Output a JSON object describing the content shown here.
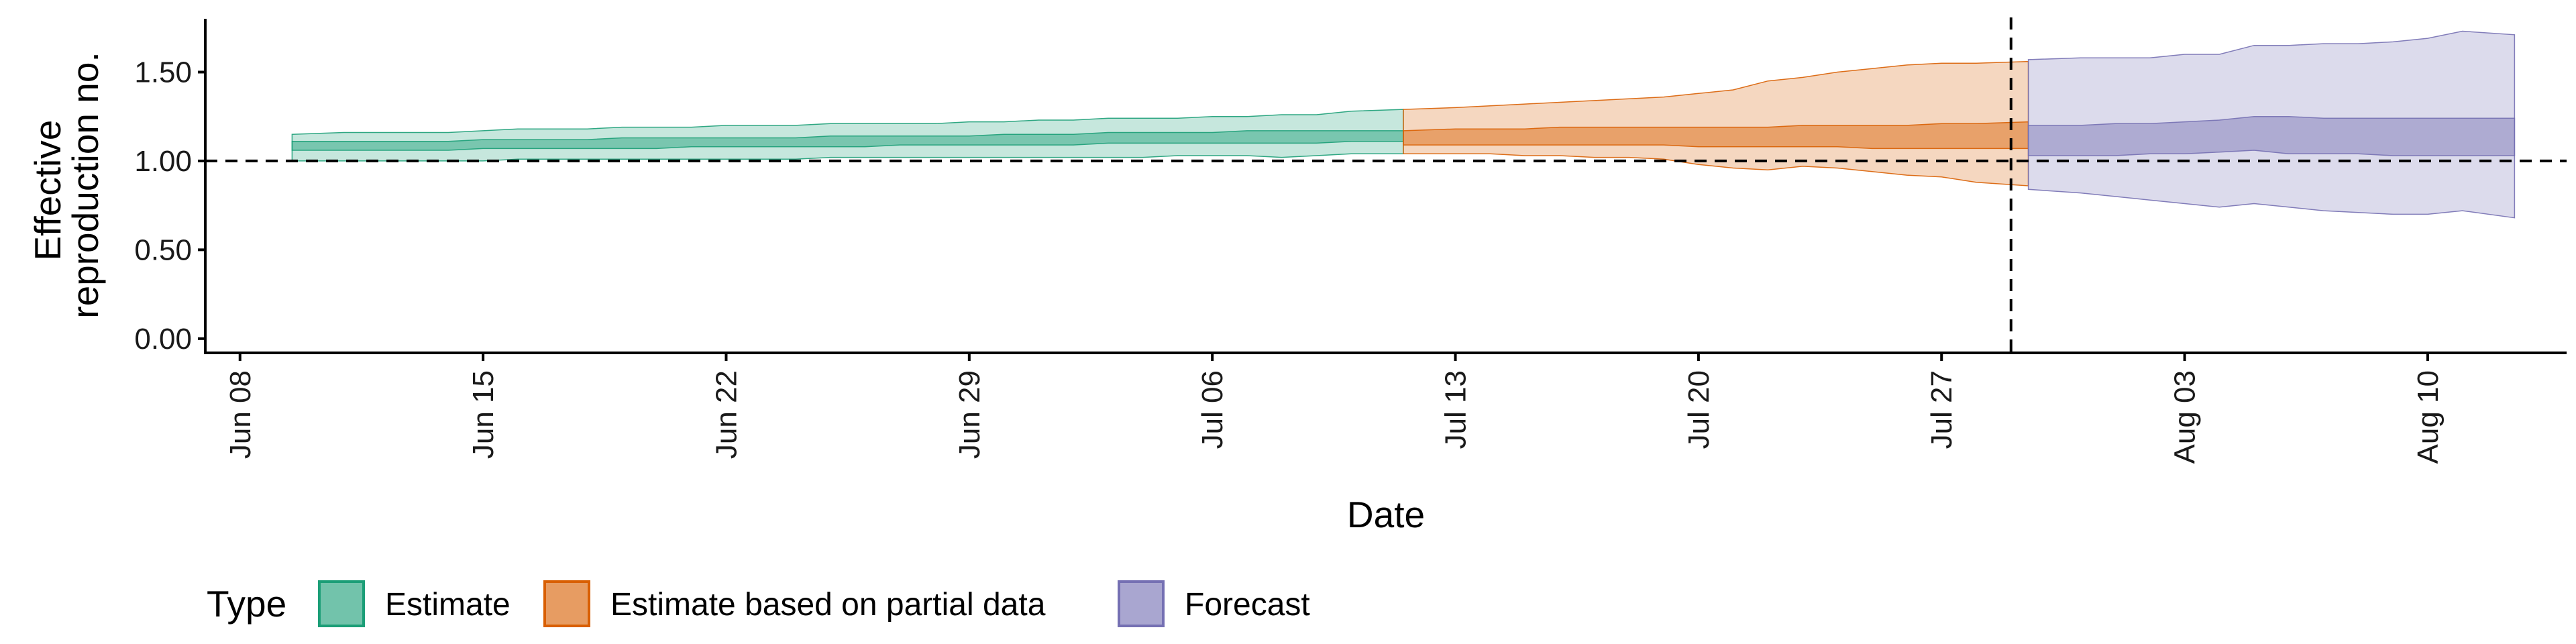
{
  "chart_data": {
    "type": "area",
    "xlabel": "Date",
    "ylabel_lines": [
      "Effective",
      "reproduction no."
    ],
    "x_ticks": [
      "Jun 08",
      "Jun 15",
      "Jun 22",
      "Jun 29",
      "Jul 06",
      "Jul 13",
      "Jul 20",
      "Jul 27",
      "Aug 03",
      "Aug 10"
    ],
    "x_tick_dates": [
      "2020-06-08",
      "2020-06-15",
      "2020-06-22",
      "2020-06-29",
      "2020-07-06",
      "2020-07-13",
      "2020-07-20",
      "2020-07-27",
      "2020-08-03",
      "2020-08-10"
    ],
    "x_range": [
      "2020-06-07",
      "2020-08-14"
    ],
    "y_ticks": [
      "0.00",
      "0.50",
      "1.00",
      "1.50"
    ],
    "ylim": [
      -0.08,
      1.8
    ],
    "hline": 1.0,
    "vline": "2020-07-29",
    "legend": {
      "title": "Type",
      "position": "bottom"
    },
    "series": [
      {
        "name": "Estimate",
        "color": "#1B9E77",
        "x": [
          "2020-06-10",
          "2020-06-11",
          "2020-06-12",
          "2020-06-13",
          "2020-06-14",
          "2020-06-15",
          "2020-06-16",
          "2020-06-17",
          "2020-06-18",
          "2020-06-19",
          "2020-06-20",
          "2020-06-21",
          "2020-06-22",
          "2020-06-23",
          "2020-06-24",
          "2020-06-25",
          "2020-06-26",
          "2020-06-27",
          "2020-06-28",
          "2020-06-29",
          "2020-06-30",
          "2020-07-01",
          "2020-07-02",
          "2020-07-03",
          "2020-07-04",
          "2020-07-05",
          "2020-07-06",
          "2020-07-07",
          "2020-07-08",
          "2020-07-09",
          "2020-07-10",
          "2020-07-11"
        ],
        "lower_90": [
          1.0,
          1.0,
          1.0,
          1.0,
          1.0,
          1.0,
          1.01,
          1.01,
          1.01,
          1.01,
          1.01,
          1.01,
          1.01,
          1.01,
          1.01,
          1.02,
          1.02,
          1.02,
          1.02,
          1.02,
          1.02,
          1.02,
          1.02,
          1.02,
          1.02,
          1.03,
          1.03,
          1.03,
          1.02,
          1.03,
          1.04,
          1.04
        ],
        "upper_90": [
          1.15,
          1.16,
          1.16,
          1.16,
          1.16,
          1.17,
          1.18,
          1.18,
          1.18,
          1.19,
          1.19,
          1.19,
          1.2,
          1.2,
          1.2,
          1.21,
          1.21,
          1.21,
          1.21,
          1.22,
          1.22,
          1.23,
          1.23,
          1.24,
          1.24,
          1.24,
          1.25,
          1.25,
          1.26,
          1.26,
          1.28,
          1.29
        ],
        "lower_50": [
          1.06,
          1.06,
          1.06,
          1.06,
          1.06,
          1.07,
          1.07,
          1.07,
          1.07,
          1.07,
          1.07,
          1.08,
          1.08,
          1.08,
          1.08,
          1.08,
          1.08,
          1.09,
          1.09,
          1.09,
          1.09,
          1.09,
          1.09,
          1.1,
          1.1,
          1.1,
          1.1,
          1.1,
          1.1,
          1.1,
          1.11,
          1.11
        ],
        "upper_50": [
          1.11,
          1.11,
          1.11,
          1.11,
          1.11,
          1.12,
          1.12,
          1.12,
          1.12,
          1.13,
          1.13,
          1.13,
          1.13,
          1.13,
          1.13,
          1.14,
          1.14,
          1.14,
          1.14,
          1.14,
          1.15,
          1.15,
          1.15,
          1.16,
          1.16,
          1.16,
          1.16,
          1.17,
          1.17,
          1.17,
          1.17,
          1.17
        ]
      },
      {
        "name": "Estimate based on partial data",
        "color": "#D95F02",
        "x": [
          "2020-07-12",
          "2020-07-13",
          "2020-07-14",
          "2020-07-15",
          "2020-07-16",
          "2020-07-17",
          "2020-07-18",
          "2020-07-19",
          "2020-07-20",
          "2020-07-21",
          "2020-07-22",
          "2020-07-23",
          "2020-07-24",
          "2020-07-25",
          "2020-07-26",
          "2020-07-27",
          "2020-07-28",
          "2020-07-29"
        ],
        "lower_90": [
          1.04,
          1.04,
          1.04,
          1.03,
          1.03,
          1.02,
          1.02,
          1.01,
          0.98,
          0.96,
          0.95,
          0.97,
          0.96,
          0.94,
          0.92,
          0.91,
          0.88,
          0.86
        ],
        "upper_90": [
          1.29,
          1.3,
          1.31,
          1.32,
          1.33,
          1.34,
          1.35,
          1.36,
          1.38,
          1.4,
          1.45,
          1.47,
          1.5,
          1.52,
          1.54,
          1.55,
          1.55,
          1.56
        ],
        "lower_50": [
          1.09,
          1.09,
          1.09,
          1.09,
          1.09,
          1.09,
          1.09,
          1.09,
          1.08,
          1.08,
          1.08,
          1.08,
          1.08,
          1.07,
          1.07,
          1.07,
          1.07,
          1.07
        ],
        "upper_50": [
          1.17,
          1.18,
          1.18,
          1.18,
          1.19,
          1.19,
          1.19,
          1.19,
          1.19,
          1.19,
          1.19,
          1.2,
          1.2,
          1.2,
          1.2,
          1.21,
          1.21,
          1.22
        ]
      },
      {
        "name": "Forecast",
        "color": "#7570B3",
        "x": [
          "2020-07-30",
          "2020-07-31",
          "2020-08-01",
          "2020-08-02",
          "2020-08-03",
          "2020-08-04",
          "2020-08-05",
          "2020-08-06",
          "2020-08-07",
          "2020-08-08",
          "2020-08-09",
          "2020-08-10",
          "2020-08-11",
          "2020-08-12"
        ],
        "lower_90": [
          0.84,
          0.82,
          0.8,
          0.78,
          0.76,
          0.74,
          0.76,
          0.74,
          0.72,
          0.71,
          0.7,
          0.7,
          0.72,
          0.68
        ],
        "upper_90": [
          1.57,
          1.58,
          1.58,
          1.58,
          1.6,
          1.6,
          1.65,
          1.65,
          1.66,
          1.66,
          1.67,
          1.69,
          1.73,
          1.71
        ],
        "lower_50": [
          1.03,
          1.03,
          1.03,
          1.04,
          1.04,
          1.05,
          1.06,
          1.04,
          1.04,
          1.04,
          1.03,
          1.03,
          1.03,
          1.03
        ],
        "upper_50": [
          1.2,
          1.2,
          1.21,
          1.21,
          1.22,
          1.23,
          1.25,
          1.25,
          1.24,
          1.24,
          1.24,
          1.24,
          1.24,
          1.24
        ]
      }
    ]
  }
}
